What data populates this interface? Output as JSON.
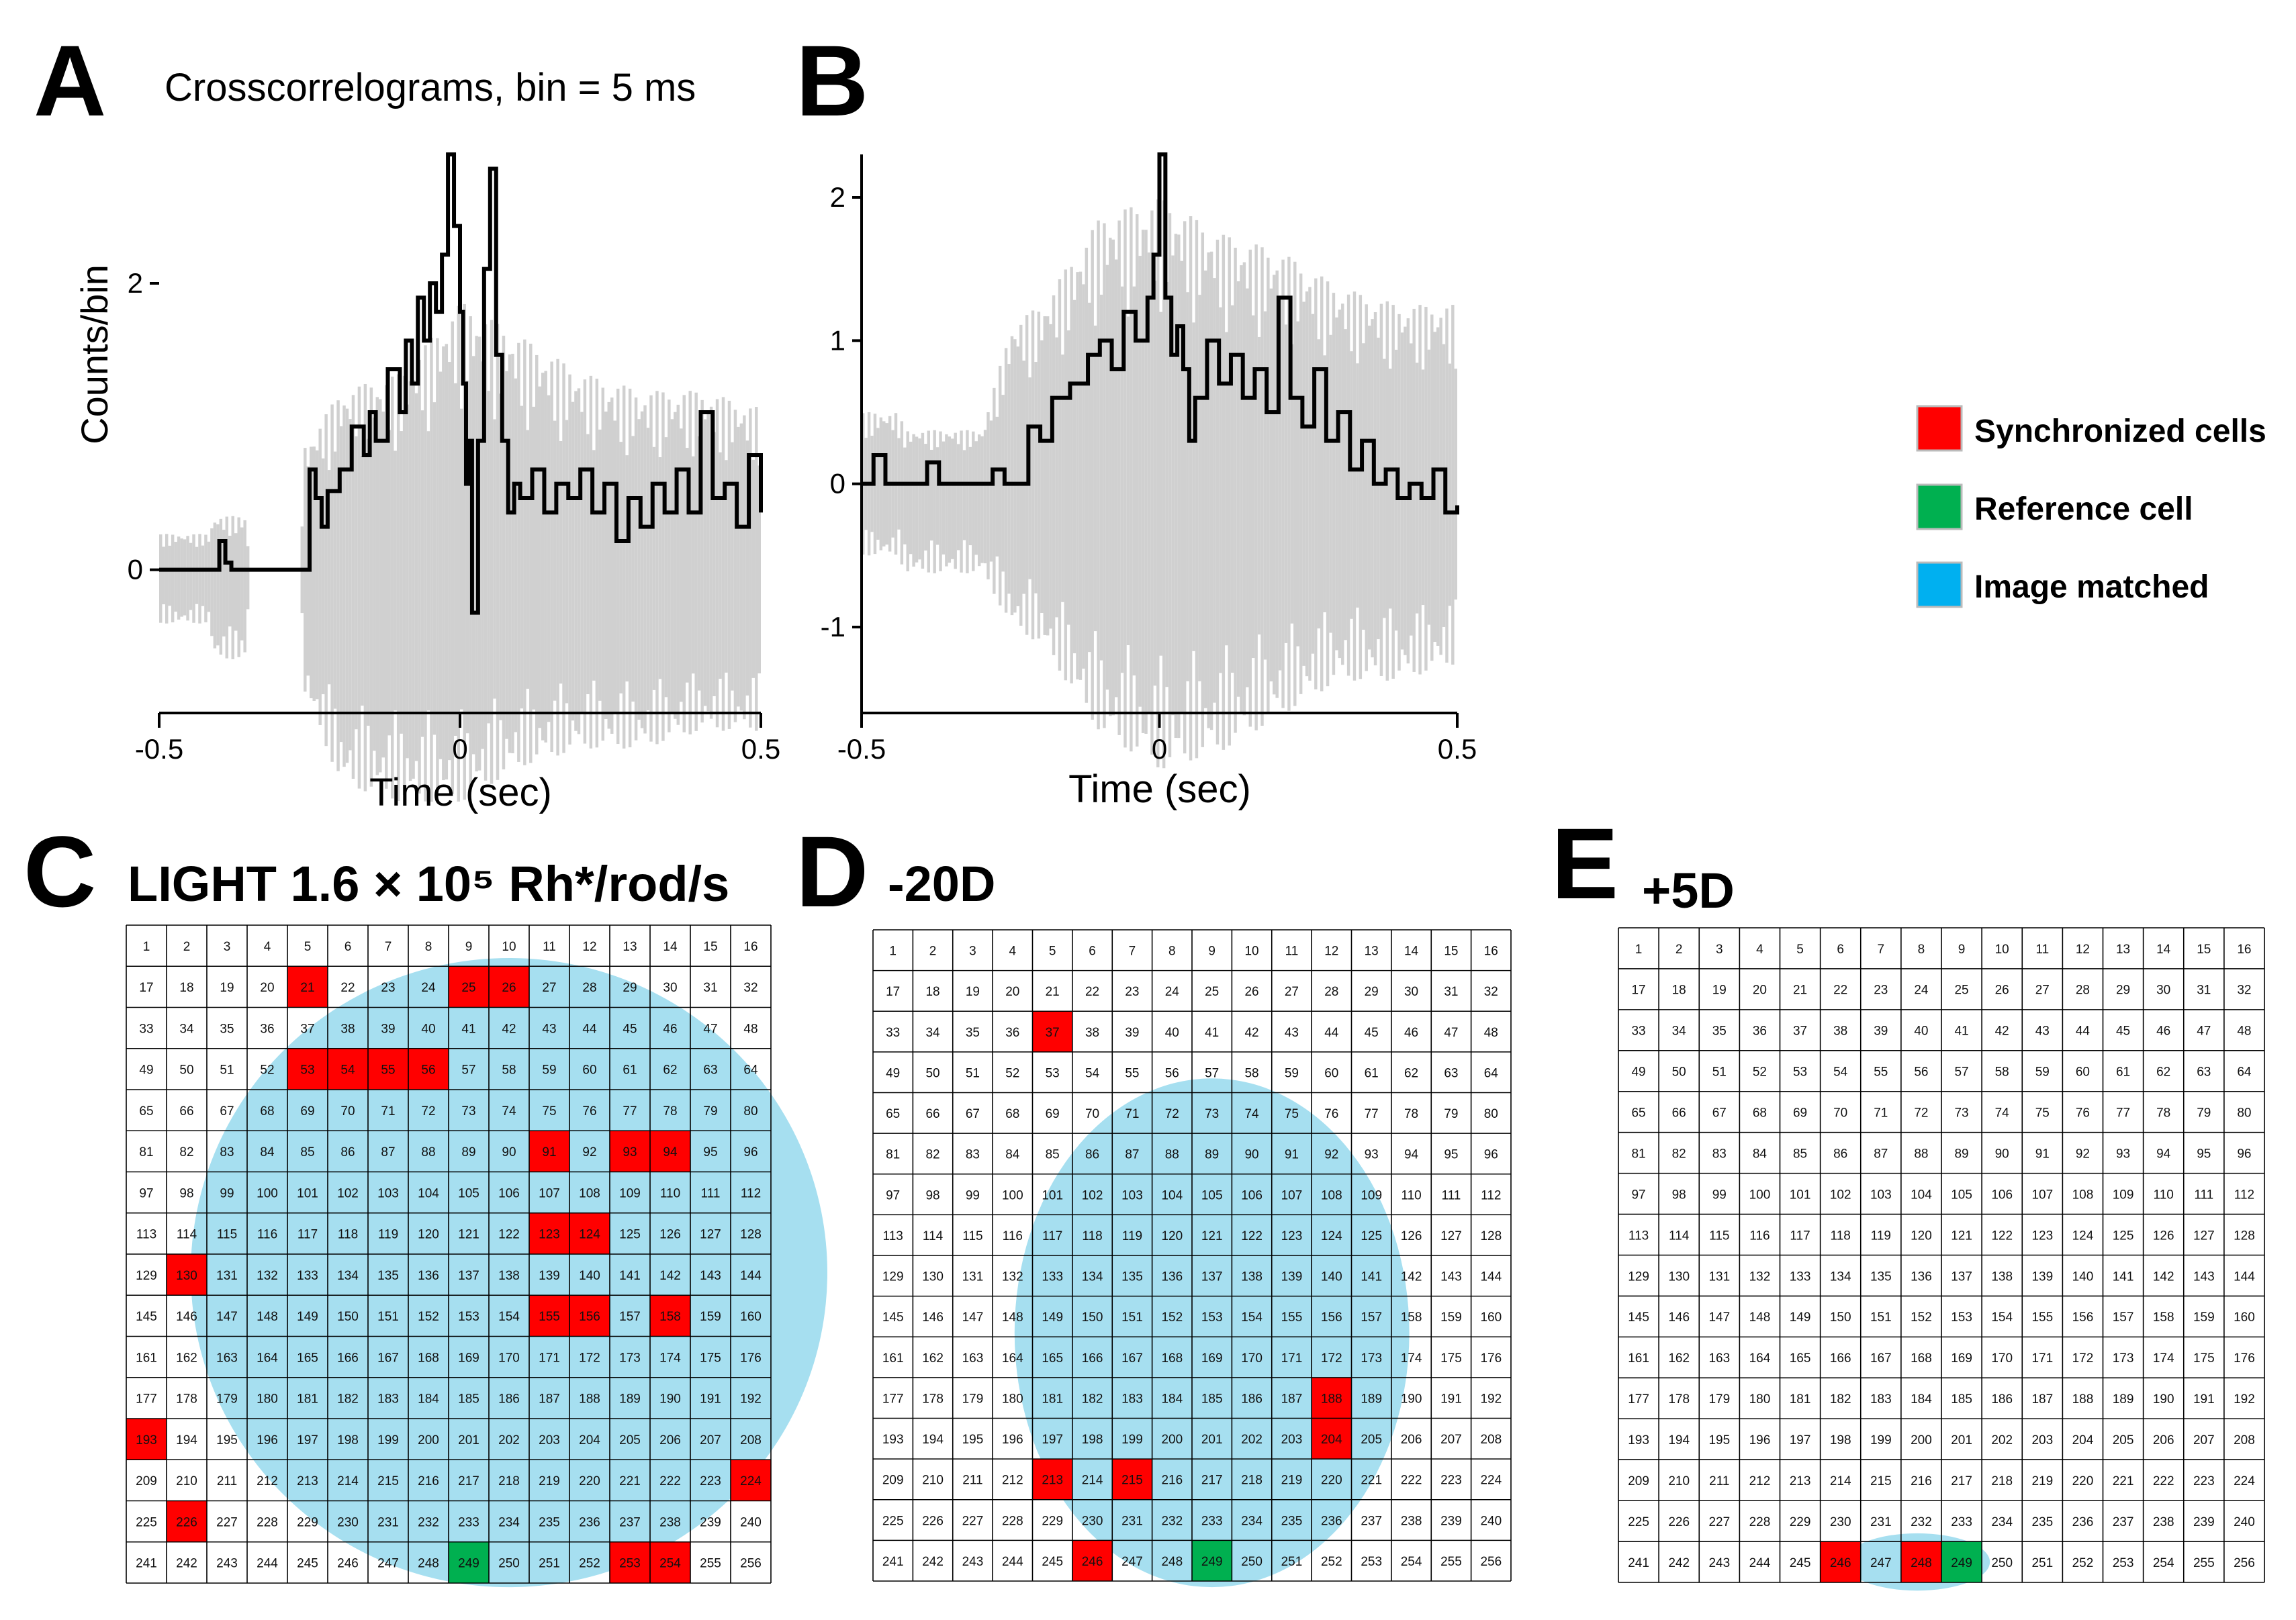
{
  "panel_labels": {
    "a": "A",
    "b": "B",
    "c": "C",
    "d": "D",
    "e": "E"
  },
  "chart_title": "Crosscorrelograms, bin = 5 ms",
  "grid_titles": {
    "c": "LIGHT 1.6 × 10⁵ Rh*/rod/s",
    "d": "-20D",
    "e": "+5D"
  },
  "legend": [
    {
      "label": "Synchronized cells",
      "color": "#ff0000"
    },
    {
      "label": "Reference cell",
      "color": "#00b050"
    },
    {
      "label": "Image matched",
      "color": "#00b0f0"
    }
  ],
  "colors": {
    "sync": "#ff0000",
    "reference": "#00b050",
    "match": "#a6dff0",
    "match_legend": "#00b0f0",
    "band": "#d0d0d0",
    "trace": "#000000"
  },
  "chart_data": [
    {
      "type": "line",
      "panel": "A",
      "title": "Crosscorrelograms, bin = 5 ms",
      "xlabel": "Time (sec)",
      "ylabel": "Counts/bin",
      "xlim": [
        -0.5,
        0.5
      ],
      "ylim": [
        -1.0,
        2.9
      ],
      "xticks": [
        "-0.5",
        "0",
        "0.5"
      ],
      "yticks": [
        "0",
        "2"
      ],
      "bin_ms": 5,
      "series": [
        {
          "points": [
            [
              -0.5,
              0
            ],
            [
              -0.41,
              0
            ],
            [
              -0.4,
              0.2
            ],
            [
              -0.39,
              0.05
            ],
            [
              -0.38,
              0
            ],
            [
              -0.26,
              0
            ],
            [
              -0.25,
              0.7
            ],
            [
              -0.24,
              0.5
            ],
            [
              -0.23,
              0.3
            ],
            [
              -0.22,
              0.55
            ],
            [
              -0.2,
              0.7
            ],
            [
              -0.18,
              1.0
            ],
            [
              -0.16,
              0.8
            ],
            [
              -0.15,
              1.1
            ],
            [
              -0.14,
              0.9
            ],
            [
              -0.12,
              1.4
            ],
            [
              -0.1,
              1.1
            ],
            [
              -0.09,
              1.6
            ],
            [
              -0.08,
              1.3
            ],
            [
              -0.07,
              1.9
            ],
            [
              -0.06,
              1.6
            ],
            [
              -0.05,
              2.0
            ],
            [
              -0.04,
              1.8
            ],
            [
              -0.03,
              2.2
            ],
            [
              -0.02,
              2.9
            ],
            [
              -0.01,
              2.4
            ],
            [
              0.0,
              1.8
            ],
            [
              0.005,
              1.3
            ],
            [
              0.01,
              0.6
            ],
            [
              0.015,
              0.9
            ],
            [
              0.02,
              -0.3
            ],
            [
              0.03,
              0.9
            ],
            [
              0.04,
              2.1
            ],
            [
              0.05,
              2.8
            ],
            [
              0.06,
              1.5
            ],
            [
              0.07,
              0.9
            ],
            [
              0.08,
              0.4
            ],
            [
              0.09,
              0.6
            ],
            [
              0.1,
              0.5
            ],
            [
              0.12,
              0.7
            ],
            [
              0.14,
              0.4
            ],
            [
              0.16,
              0.6
            ],
            [
              0.18,
              0.5
            ],
            [
              0.2,
              0.7
            ],
            [
              0.22,
              0.4
            ],
            [
              0.24,
              0.6
            ],
            [
              0.26,
              0.2
            ],
            [
              0.28,
              0.5
            ],
            [
              0.3,
              0.3
            ],
            [
              0.32,
              0.6
            ],
            [
              0.34,
              0.4
            ],
            [
              0.36,
              0.7
            ],
            [
              0.38,
              0.4
            ],
            [
              0.4,
              1.1
            ],
            [
              0.42,
              0.5
            ],
            [
              0.44,
              0.6
            ],
            [
              0.46,
              0.3
            ],
            [
              0.48,
              0.8
            ],
            [
              0.5,
              0.4
            ]
          ]
        },
        {
          "name": "band",
          "points": [
            [
              -0.5,
              0.2,
              -0.3
            ],
            [
              -0.42,
              0.2,
              -0.3
            ],
            [
              -0.41,
              0.3,
              -0.5
            ],
            [
              -0.36,
              0.3,
              -0.5
            ],
            [
              -0.35,
              0,
              0
            ],
            [
              -0.27,
              0,
              0
            ],
            [
              -0.26,
              0.7,
              -0.7
            ],
            [
              -0.2,
              1.0,
              -1.2
            ],
            [
              -0.1,
              1.1,
              -1.3
            ],
            [
              0.0,
              1.5,
              -1.3
            ],
            [
              0.1,
              1.3,
              -1.1
            ],
            [
              0.2,
              1.1,
              -1.0
            ],
            [
              0.3,
              1.0,
              -1.0
            ],
            [
              0.4,
              1.0,
              -0.9
            ],
            [
              0.5,
              0.9,
              -0.9
            ]
          ]
        }
      ]
    },
    {
      "type": "line",
      "panel": "B",
      "xlabel": "Time (sec)",
      "ylabel": "",
      "xlim": [
        -0.5,
        0.5
      ],
      "ylim": [
        -1.6,
        2.3
      ],
      "xticks": [
        "-0.5",
        "0",
        "0.5"
      ],
      "yticks": [
        "-1",
        "0",
        "1",
        "2"
      ],
      "series": [
        {
          "points": [
            [
              -0.5,
              0
            ],
            [
              -0.48,
              0.2
            ],
            [
              -0.46,
              0
            ],
            [
              -0.4,
              0
            ],
            [
              -0.39,
              0.15
            ],
            [
              -0.37,
              0
            ],
            [
              -0.3,
              0
            ],
            [
              -0.28,
              0.1
            ],
            [
              -0.26,
              0
            ],
            [
              -0.24,
              0
            ],
            [
              -0.22,
              0.4
            ],
            [
              -0.2,
              0.3
            ],
            [
              -0.18,
              0.6
            ],
            [
              -0.15,
              0.7
            ],
            [
              -0.12,
              0.9
            ],
            [
              -0.1,
              1.0
            ],
            [
              -0.08,
              0.8
            ],
            [
              -0.06,
              1.2
            ],
            [
              -0.04,
              1.0
            ],
            [
              -0.02,
              1.3
            ],
            [
              -0.01,
              1.6
            ],
            [
              0.0,
              2.3
            ],
            [
              0.01,
              1.3
            ],
            [
              0.02,
              0.9
            ],
            [
              0.03,
              1.1
            ],
            [
              0.04,
              0.8
            ],
            [
              0.05,
              0.3
            ],
            [
              0.06,
              0.6
            ],
            [
              0.08,
              1.0
            ],
            [
              0.1,
              0.7
            ],
            [
              0.12,
              0.9
            ],
            [
              0.14,
              0.6
            ],
            [
              0.16,
              0.8
            ],
            [
              0.18,
              0.5
            ],
            [
              0.2,
              1.3
            ],
            [
              0.22,
              0.6
            ],
            [
              0.24,
              0.4
            ],
            [
              0.26,
              0.8
            ],
            [
              0.28,
              0.3
            ],
            [
              0.3,
              0.5
            ],
            [
              0.32,
              0.1
            ],
            [
              0.34,
              0.3
            ],
            [
              0.36,
              0.0
            ],
            [
              0.38,
              0.1
            ],
            [
              0.4,
              -0.1
            ],
            [
              0.42,
              0.0
            ],
            [
              0.44,
              -0.1
            ],
            [
              0.46,
              0.1
            ],
            [
              0.48,
              -0.2
            ],
            [
              0.5,
              -0.15
            ]
          ]
        },
        {
          "name": "band",
          "points": [
            [
              -0.5,
              0.4,
              -0.4
            ],
            [
              -0.44,
              0.4,
              -0.4
            ],
            [
              -0.43,
              0.3,
              -0.5
            ],
            [
              -0.3,
              0.3,
              -0.5
            ],
            [
              -0.25,
              0.9,
              -0.8
            ],
            [
              -0.2,
              1.0,
              -0.9
            ],
            [
              -0.1,
              1.5,
              -1.4
            ],
            [
              0.0,
              1.6,
              -1.6
            ],
            [
              0.1,
              1.4,
              -1.5
            ],
            [
              0.2,
              1.3,
              -1.3
            ],
            [
              0.3,
              1.1,
              -1.1
            ],
            [
              0.4,
              1.0,
              -1.1
            ],
            [
              0.5,
              1.0,
              -1.0
            ]
          ]
        }
      ]
    },
    {
      "type": "table",
      "panel": "C",
      "title": "LIGHT 1.6 × 10⁵ Rh*/rod/s",
      "rows": 16,
      "cols": 16,
      "cells": "1..256",
      "synchronized": [
        21,
        25,
        26,
        53,
        54,
        55,
        56,
        91,
        93,
        94,
        123,
        124,
        130,
        155,
        156,
        158,
        193,
        224,
        226,
        253,
        254
      ],
      "reference": [
        249
      ],
      "match_ellipse": {
        "center_cell": 140,
        "span": "columns 2-16, rows 4-16"
      }
    },
    {
      "type": "table",
      "panel": "D",
      "title": "-20D",
      "rows": 16,
      "cols": 16,
      "cells": "1..256",
      "synchronized": [
        37,
        188,
        204,
        213,
        215,
        246
      ],
      "reference": [
        249
      ],
      "match_ellipse": {
        "center_cell": 150,
        "span": "columns 4-12, rows 4-16"
      }
    },
    {
      "type": "table",
      "panel": "E",
      "title": "+5D",
      "rows": 16,
      "cols": 16,
      "cells": "1..256",
      "synchronized": [
        246,
        248
      ],
      "reference": [
        249
      ],
      "match_ellipse": {
        "center_cell": 247,
        "span": "columns 6-9, row 16"
      }
    }
  ]
}
